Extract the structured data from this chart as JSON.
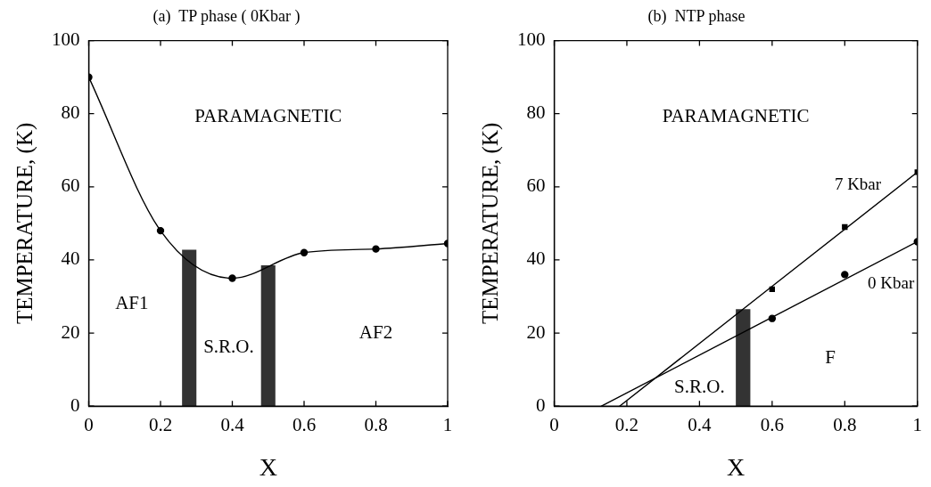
{
  "chart_data": [
    {
      "type": "line",
      "title": "(a)  TP phase ( 0Kbar )",
      "xlabel": "X",
      "ylabel": "TEMPERATURE, (K)",
      "x": [
        0,
        0.2,
        0.4,
        0.6,
        0.8,
        1
      ],
      "series": [
        {
          "color": "#000000",
          "values": [
            90,
            48,
            35,
            42,
            43,
            44.5
          ]
        }
      ],
      "xlim": [
        0,
        1
      ],
      "xticks": [
        0,
        0.2,
        0.4,
        0.6,
        0.8,
        1
      ],
      "ylim": [
        0,
        100
      ],
      "yticks": [
        0,
        20,
        40,
        60,
        80,
        100
      ],
      "marker": "circle",
      "grid": false,
      "bands": [
        {
          "axis": "x",
          "from": 0.26,
          "to": 0.3,
          "color": "#333333"
        },
        {
          "axis": "x",
          "from": 0.48,
          "to": 0.52,
          "color": "#333333"
        }
      ],
      "annotations": [
        "PARAMAGNETIC",
        "AF1",
        "S.R.O.",
        "AF2"
      ]
    },
    {
      "type": "line",
      "title": "(b)  NTP phase",
      "xlabel": "X",
      "ylabel": "TEMPERATURE, (K)",
      "series": [
        {
          "name": "7 Kbar",
          "color": "#000000",
          "x": [
            0.18,
            1
          ],
          "values": [
            0,
            64
          ],
          "marker": "none"
        },
        {
          "name": "0 Kbar",
          "color": "#000000",
          "x": [
            0.13,
            1
          ],
          "values": [
            0,
            45
          ],
          "marker": "none"
        },
        {
          "type": "scatter",
          "color": "#000000",
          "x": [
            0.6,
            0.8,
            1
          ],
          "values": [
            32,
            49,
            64
          ],
          "marker": "square"
        },
        {
          "type": "scatter",
          "color": "#000000",
          "x": [
            0.6,
            0.8,
            1
          ],
          "values": [
            24,
            36,
            45
          ],
          "marker": "circle"
        }
      ],
      "xlim": [
        0,
        1
      ],
      "xticks": [
        0,
        0.2,
        0.4,
        0.6,
        0.8,
        1
      ],
      "ylim": [
        0,
        100
      ],
      "yticks": [
        0,
        20,
        40,
        60,
        80,
        100
      ],
      "grid": false,
      "legend": "right",
      "bands": [
        {
          "axis": "x",
          "from": 0.5,
          "to": 0.54,
          "color": "#333333"
        }
      ],
      "annotations": [
        "PARAMAGNETIC",
        "S.R.O.",
        "F"
      ]
    }
  ]
}
